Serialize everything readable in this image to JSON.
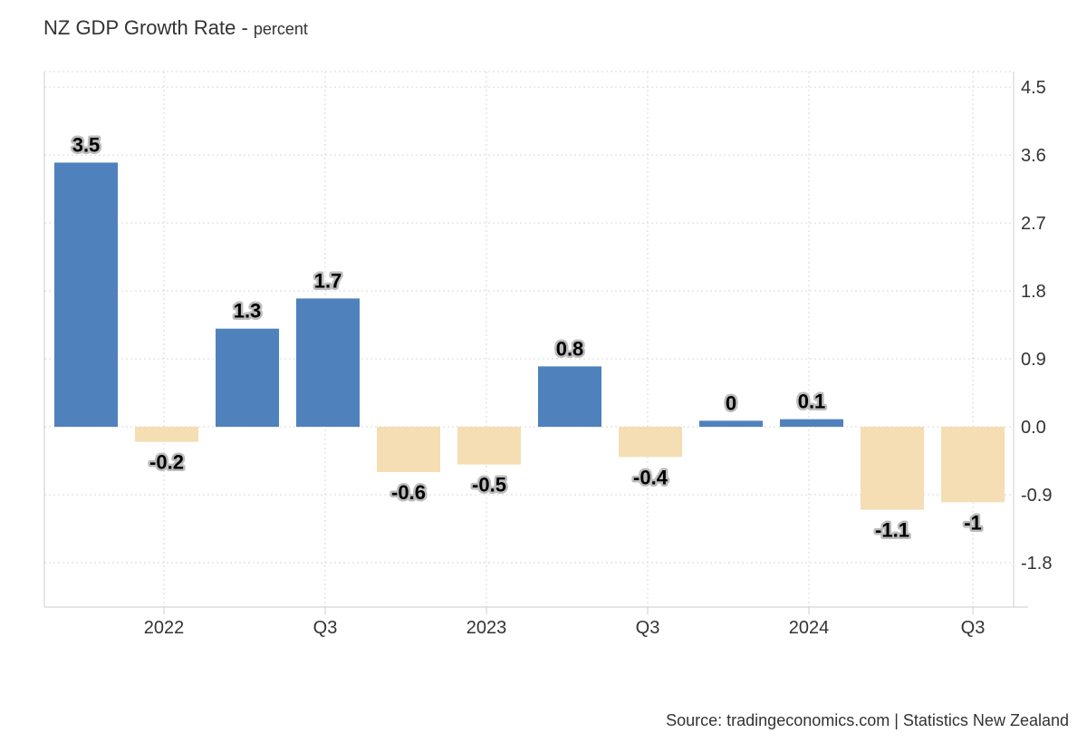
{
  "title": "NZ GDP Growth Rate",
  "subtitle": "percent",
  "source": "Source: tradingeconomics.com | Statistics New Zealand",
  "colors": {
    "positive": "#4f81bd",
    "negative": "#f5deb3",
    "grid": "#d9d9d9",
    "axis": "#cccccc"
  },
  "chart_data": {
    "type": "bar",
    "values": [
      3.5,
      -0.2,
      1.3,
      1.7,
      -0.6,
      -0.5,
      0.8,
      -0.4,
      0.08,
      0.1,
      -1.1,
      -1.0
    ],
    "data_labels": [
      "3.5",
      "-0.2",
      "1.3",
      "1.7",
      "-0.6",
      "-0.5",
      "0.8",
      "-0.4",
      "0",
      "0.1",
      "-1.1",
      "-1"
    ],
    "x_tick_labels": [
      "2022",
      "Q3",
      "2023",
      "Q3",
      "2024",
      "Q3"
    ],
    "y_ticks": [
      "4.5",
      "3.6",
      "2.7",
      "1.8",
      "0.9",
      "0.0",
      "-0.9",
      "-1.8"
    ],
    "y_tick_values": [
      4.5,
      3.6,
      2.7,
      1.8,
      0.9,
      0.0,
      -0.9,
      -1.8
    ],
    "ylim": [
      -2.4,
      4.7
    ],
    "y_axis_side": "right",
    "grid": true,
    "legend": "none"
  }
}
